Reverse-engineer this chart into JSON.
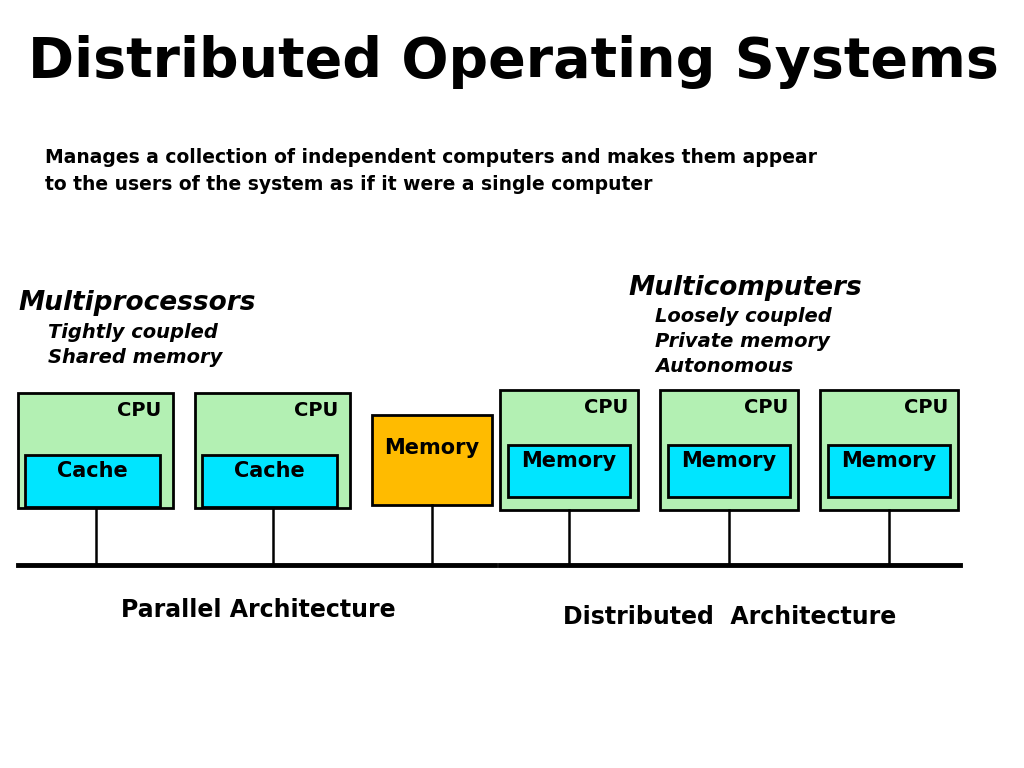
{
  "title": "Distributed Operating Systems",
  "subtitle_line1": "Manages a collection of independent computers and makes them appear",
  "subtitle_line2": "to the users of the system as if it were a single computer",
  "bg_color": "#ffffff",
  "title_color": "#000000",
  "left_label_title": "Multiprocessors",
  "left_label_sub1": "Tightly coupled",
  "left_label_sub2": "Shared memory",
  "right_label_title": "Multicomputers",
  "right_label_sub1": "Loosely coupled",
  "right_label_sub2": "Private memory",
  "right_label_sub3": "Autonomous",
  "parallel_arch_label": "Parallel Architecture",
  "distributed_arch_label": "Distributed  Architecture",
  "light_green": "#b3f0b3",
  "cyan": "#00e5ff",
  "yellow_orange": "#ffbb00"
}
